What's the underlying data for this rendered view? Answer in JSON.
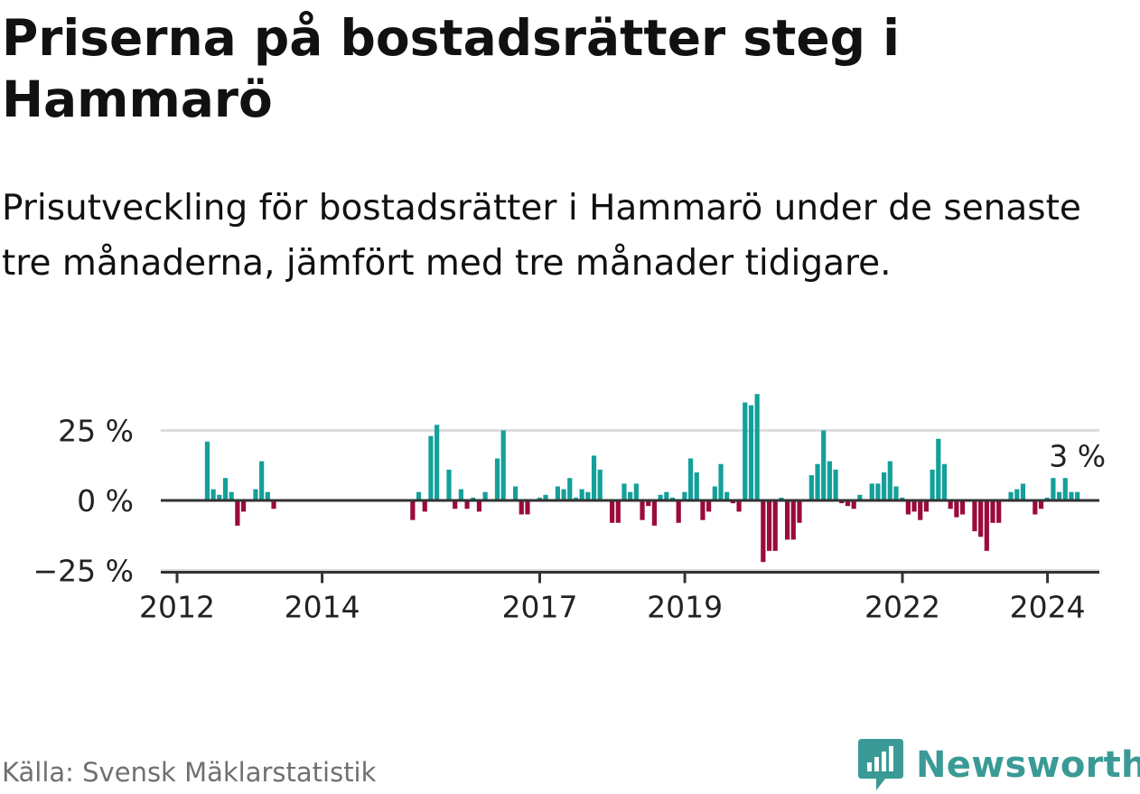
{
  "title": "Priserna på bostadsrätter steg i Hammarö",
  "subtitle": "Prisutveckling för bostadsrätter i Hammarö under de senaste tre månaderna, jämfört med tre månader tidigare.",
  "footer": {
    "source": "Källa: Svensk Mäklarstatistik"
  },
  "logo": {
    "text": "Newsworthy",
    "icon": "newsworthy-logo-icon"
  },
  "colors": {
    "positive": "#14a09a",
    "negative": "#9b0a3c",
    "axis": "#333333",
    "grid": "#dddddd",
    "logo": "#3a9a96"
  },
  "chart_data": {
    "type": "bar",
    "title": "Priserna på bostadsrätter steg i Hammarö",
    "xlabel": "",
    "ylabel": "",
    "ylim": [
      -27,
      39
    ],
    "yticks": [
      25,
      0,
      -25
    ],
    "ytick_labels": [
      "25 %",
      "0 %",
      "−25 %"
    ],
    "xticks": [
      2012,
      2014,
      2017,
      2019,
      2022,
      2024
    ],
    "xtick_labels": [
      "2012",
      "2014",
      "2017",
      "2019",
      "2022",
      "2024"
    ],
    "x_start": 2012.0,
    "x_step": 0.0833,
    "last_value_label": "3 %",
    "values": [
      0,
      0,
      0,
      0,
      0,
      21,
      4,
      2,
      8,
      3,
      -9,
      -4,
      0,
      4,
      14,
      3,
      -3,
      0,
      0,
      0,
      0,
      0,
      0,
      0,
      0,
      0,
      0,
      0,
      0,
      0,
      0,
      0,
      0,
      0,
      0,
      0,
      0,
      0,
      0,
      -7,
      3,
      -4,
      23,
      27,
      0,
      11,
      -3,
      4,
      -3,
      1,
      -4,
      3,
      0,
      15,
      25,
      0,
      5,
      -5,
      -5,
      0,
      1,
      2,
      0,
      5,
      4,
      8,
      1,
      4,
      3,
      16,
      11,
      0,
      -8,
      -8,
      6,
      3,
      6,
      -7,
      -2,
      -9,
      2,
      3,
      1,
      -8,
      3,
      15,
      10,
      -7,
      -4,
      5,
      13,
      3,
      -1,
      -4,
      35,
      34,
      38,
      -22,
      -18,
      -18,
      1,
      -14,
      -14,
      -8,
      0,
      9,
      13,
      25,
      14,
      11,
      -1,
      -2,
      -3,
      2,
      0,
      6,
      6,
      10,
      14,
      5,
      1,
      -5,
      -4,
      -7,
      -4,
      11,
      22,
      13,
      -3,
      -6,
      -5,
      0,
      -11,
      -13,
      -18,
      -8,
      -8,
      0,
      3,
      4,
      6,
      0,
      -5,
      -3,
      1,
      8,
      3,
      8,
      3,
      3
    ]
  }
}
